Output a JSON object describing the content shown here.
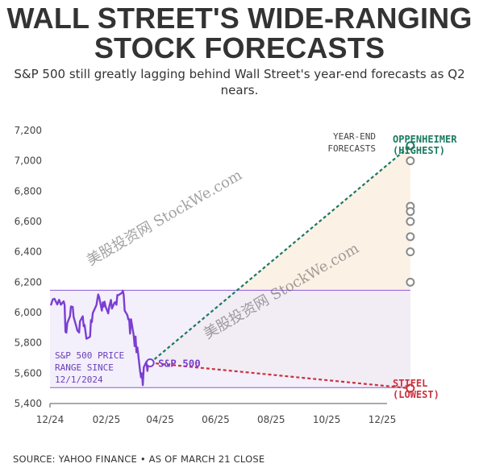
{
  "header": {
    "title_line1": "WALL STREET'S WIDE-RANGING",
    "title_line2": "STOCK FORECASTS",
    "subtitle": "S&P 500 still greatly lagging behind Wall Street's year-end forecasts as Q2 nears."
  },
  "footer": {
    "source": "SOURCE: YAHOO FINANCE • AS OF MARCH 21 CLOSE"
  },
  "watermarks": [
    "美股投资网 StockWe.com",
    "美股投资网 StockWe.com"
  ],
  "colors": {
    "sp500": "#7b3fd1",
    "high": "#1a7a60",
    "low": "#c9323e",
    "range_fill": "#efe9f9",
    "range_line": "#8a5ad9",
    "fan_fill": "#fcefe2"
  },
  "chart_data": {
    "type": "line",
    "title": "WALL STREET'S WIDE-RANGING STOCK FORECASTS",
    "x_tick_labels": [
      "12/24",
      "02/25",
      "04/25",
      "06/25",
      "08/25",
      "10/25",
      "12/25"
    ],
    "x_tick_dates": [
      "2024-12-01",
      "2025-02-01",
      "2025-04-01",
      "2025-06-01",
      "2025-08-01",
      "2025-10-01",
      "2025-12-01"
    ],
    "ylim": [
      5400,
      7200
    ],
    "y_ticks": [
      5400,
      5600,
      5800,
      6000,
      6200,
      6400,
      6600,
      6800,
      7000,
      7200
    ],
    "y_tick_labels": [
      "5,400",
      "5,600",
      "5,800",
      "6,000",
      "6,200",
      "6,400",
      "6,600",
      "6,800",
      "7,000",
      "7,200"
    ],
    "price_range": {
      "low": 5505,
      "high": 6147,
      "label_lines": [
        "S&P 500 PRICE",
        "RANGE SINCE",
        "12/1/2024"
      ]
    },
    "series": [
      {
        "name": "S&P 500",
        "points": [
          [
            "2024-12-02",
            6047
          ],
          [
            "2024-12-04",
            6086
          ],
          [
            "2024-12-06",
            6090
          ],
          [
            "2024-12-09",
            6053
          ],
          [
            "2024-12-11",
            6084
          ],
          [
            "2024-12-13",
            6051
          ],
          [
            "2024-12-16",
            6074
          ],
          [
            "2024-12-17",
            6050
          ],
          [
            "2024-12-18",
            5872
          ],
          [
            "2024-12-19",
            5867
          ],
          [
            "2024-12-20",
            5930
          ],
          [
            "2024-12-23",
            5975
          ],
          [
            "2024-12-24",
            6040
          ],
          [
            "2024-12-26",
            6037
          ],
          [
            "2024-12-27",
            5970
          ],
          [
            "2024-12-30",
            5907
          ],
          [
            "2024-12-31",
            5882
          ],
          [
            "2025-01-02",
            5868
          ],
          [
            "2025-01-03",
            5942
          ],
          [
            "2025-01-06",
            5975
          ],
          [
            "2025-01-07",
            5909
          ],
          [
            "2025-01-08",
            5918
          ],
          [
            "2025-01-10",
            5827
          ],
          [
            "2025-01-13",
            5836
          ],
          [
            "2025-01-14",
            5842
          ],
          [
            "2025-01-15",
            5950
          ],
          [
            "2025-01-16",
            5937
          ],
          [
            "2025-01-17",
            5997
          ],
          [
            "2025-01-21",
            6049
          ],
          [
            "2025-01-22",
            6086
          ],
          [
            "2025-01-23",
            6119
          ],
          [
            "2025-01-24",
            6101
          ],
          [
            "2025-01-27",
            6012
          ],
          [
            "2025-01-28",
            6067
          ],
          [
            "2025-01-29",
            6039
          ],
          [
            "2025-01-30",
            6071
          ],
          [
            "2025-01-31",
            6040
          ],
          [
            "2025-02-03",
            5994
          ],
          [
            "2025-02-04",
            6037
          ],
          [
            "2025-02-05",
            6061
          ],
          [
            "2025-02-06",
            6083
          ],
          [
            "2025-02-07",
            6026
          ],
          [
            "2025-02-10",
            6066
          ],
          [
            "2025-02-11",
            6068
          ],
          [
            "2025-02-12",
            6051
          ],
          [
            "2025-02-13",
            6115
          ],
          [
            "2025-02-14",
            6114
          ],
          [
            "2025-02-18",
            6129
          ],
          [
            "2025-02-19",
            6144
          ],
          [
            "2025-02-20",
            6117
          ],
          [
            "2025-02-21",
            6013
          ],
          [
            "2025-02-24",
            5983
          ],
          [
            "2025-02-25",
            5955
          ],
          [
            "2025-02-26",
            5956
          ],
          [
            "2025-02-27",
            5861
          ],
          [
            "2025-02-28",
            5955
          ],
          [
            "2025-03-03",
            5850
          ],
          [
            "2025-03-04",
            5778
          ],
          [
            "2025-03-05",
            5842
          ],
          [
            "2025-03-06",
            5738
          ],
          [
            "2025-03-07",
            5770
          ],
          [
            "2025-03-10",
            5615
          ],
          [
            "2025-03-11",
            5572
          ],
          [
            "2025-03-12",
            5599
          ],
          [
            "2025-03-13",
            5521
          ],
          [
            "2025-03-14",
            5639
          ],
          [
            "2025-03-17",
            5675
          ],
          [
            "2025-03-18",
            5615
          ],
          [
            "2025-03-19",
            5675
          ],
          [
            "2025-03-20",
            5663
          ],
          [
            "2025-03-21",
            5668
          ]
        ]
      }
    ],
    "current": {
      "label": "S&P 500",
      "date": "2025-03-21",
      "value": 5668
    },
    "year_end_forecasts": {
      "label_lines": [
        "YEAR-END",
        "FORECASTS"
      ],
      "date": "2025-12-31",
      "values": [
        7100,
        7000,
        6700,
        6666,
        6600,
        6500,
        6400,
        6200,
        5500
      ],
      "highest": {
        "value": 7100,
        "label_lines": [
          "OPPENHEIMER",
          "(HIGHEST)"
        ]
      },
      "lowest": {
        "value": 5500,
        "label_lines": [
          "STIFEL",
          "(LOWEST)"
        ]
      }
    }
  }
}
